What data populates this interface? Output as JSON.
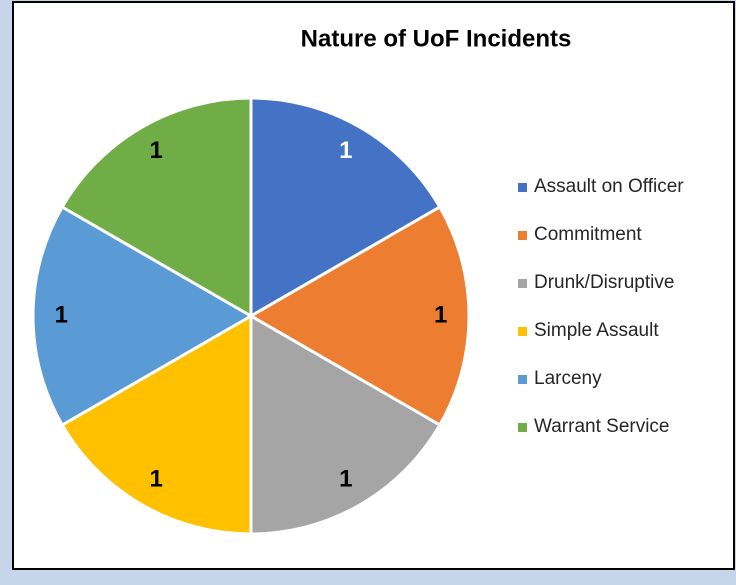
{
  "chart_data": {
    "type": "pie",
    "title": "Nature of UoF Incidents",
    "categories": [
      "Assault on Officer",
      "Commitment",
      "Drunk/Disruptive",
      "Simple Assault",
      "Larceny",
      "Warrant Service"
    ],
    "values": [
      1,
      1,
      1,
      1,
      1,
      1
    ],
    "colors": [
      "#4472c4",
      "#ed7d31",
      "#a5a5a5",
      "#ffc000",
      "#5b9bd5",
      "#70ad47"
    ],
    "data_label_colors": [
      "#ffffff",
      "#000000",
      "#000000",
      "#000000",
      "#000000",
      "#000000"
    ],
    "legend": "right"
  }
}
